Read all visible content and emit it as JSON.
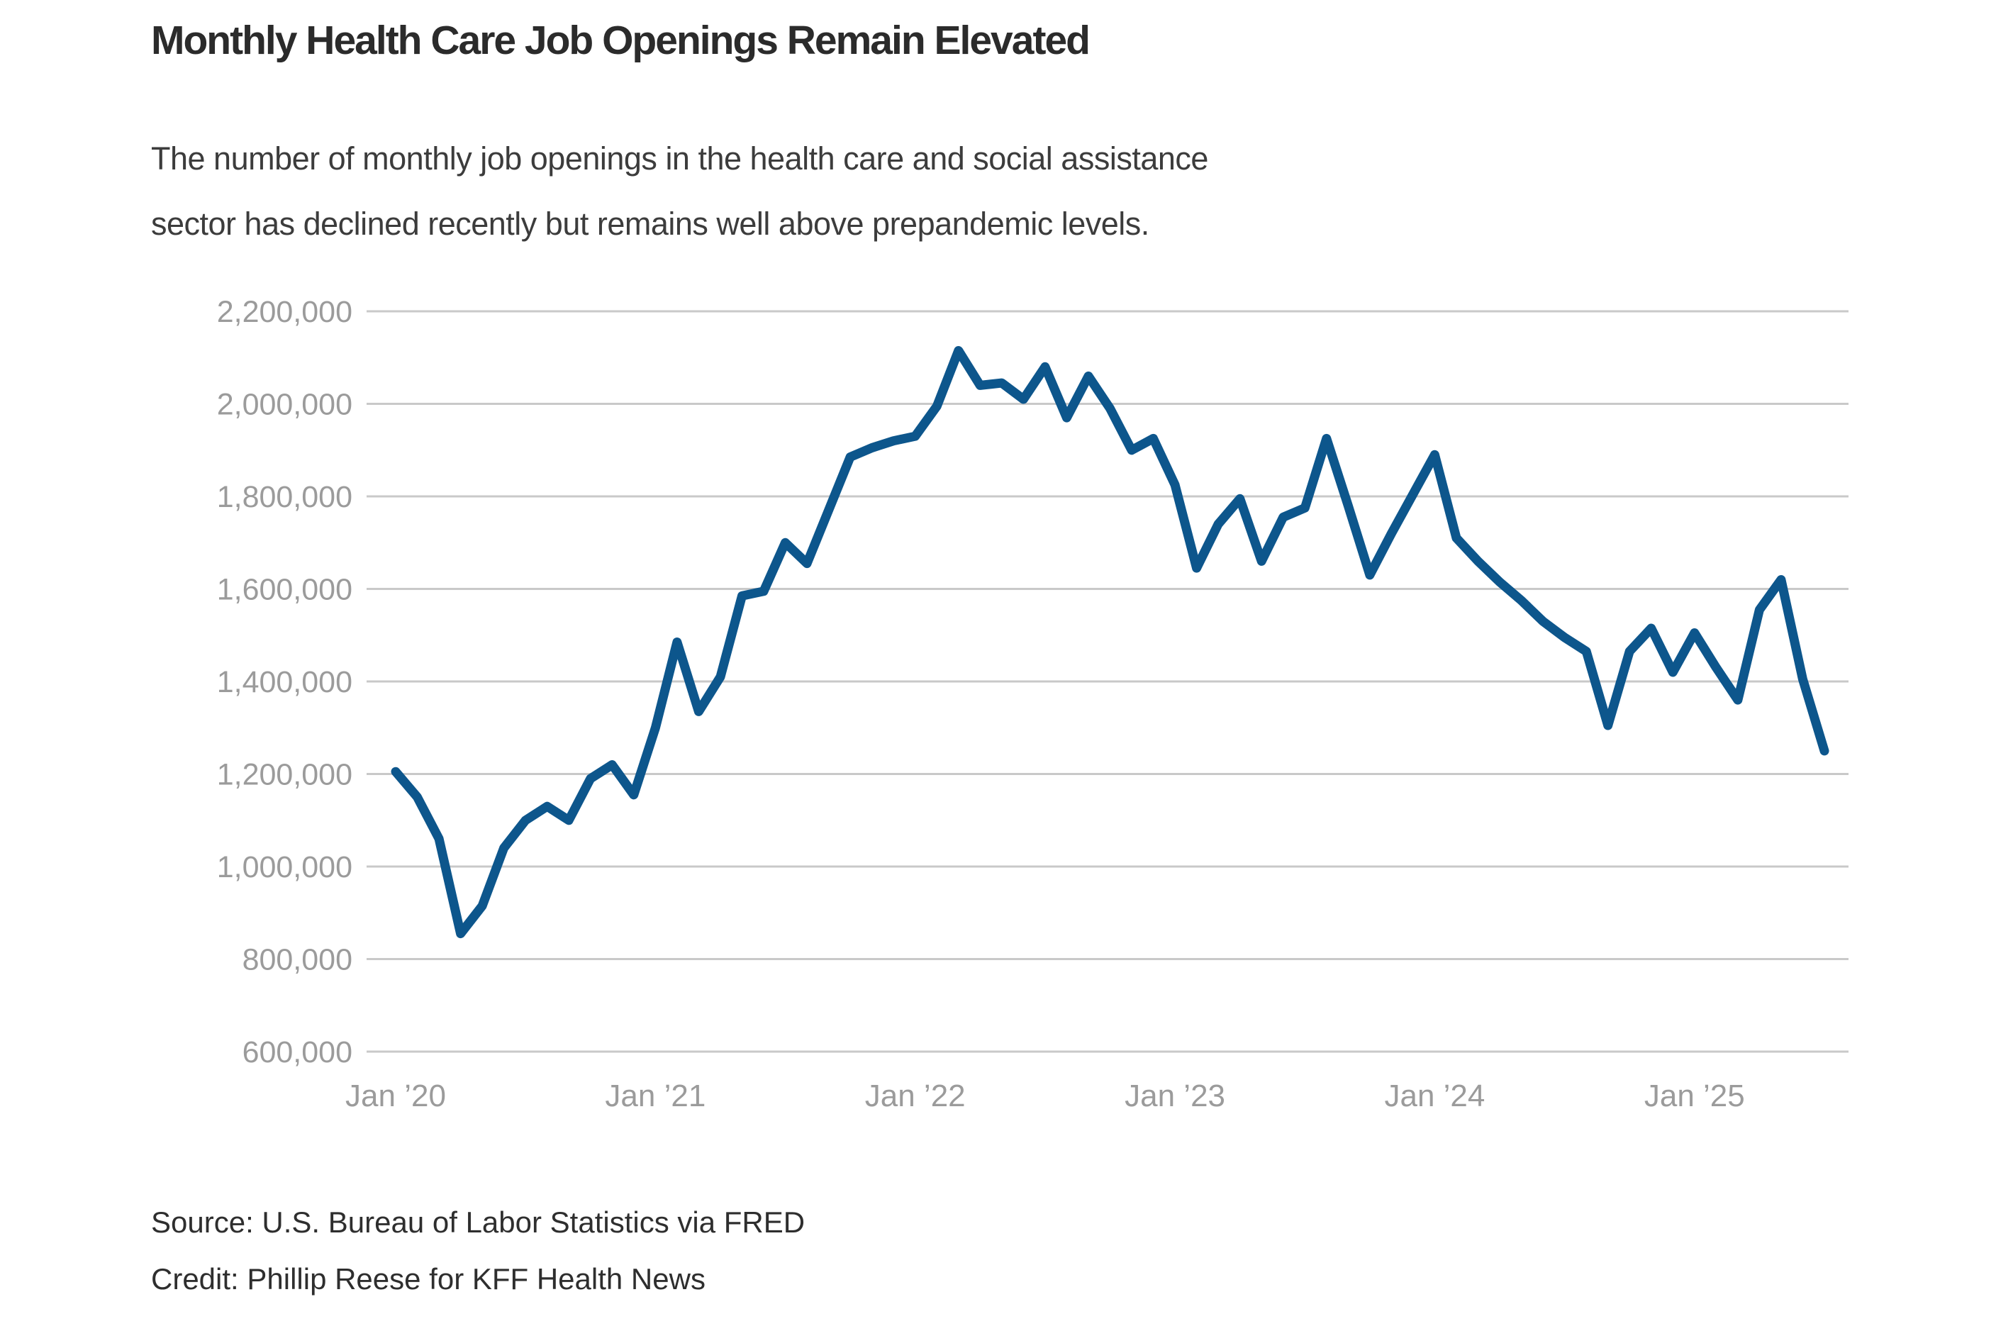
{
  "header": {},
  "footer": {
    "source": "Source: U.S. Bureau of Labor Statistics via FRED",
    "credit": "Credit: Phillip Reese for KFF Health News"
  },
  "colors": {
    "line": "#0d568c",
    "grid": "#c9c9c9",
    "axis_text": "#9b9b9b",
    "title_text": "#2b2b2b",
    "subtitle_text": "#3c3c3c",
    "footer_text": "#2e2e2e",
    "background": "#ffffff"
  },
  "chart_data": {
    "type": "line",
    "title": "Monthly Health Care Job Openings Remain Elevated",
    "subtitle_line1": "The number of monthly job openings in the health care and social assistance",
    "subtitle_line2": "sector has declined recently but remains well above prepandemic levels.",
    "xlabel": "",
    "ylabel": "",
    "grid": true,
    "legend_position": "none",
    "ylim": [
      600000,
      2200000
    ],
    "y_tick_step": 200000,
    "y_tick_labels": [
      "600,000",
      "800,000",
      "1,000,000",
      "1,200,000",
      "1,400,000",
      "1,600,000",
      "1,800,000",
      "2,000,000",
      "2,200,000"
    ],
    "x_tick_labels": [
      "Jan ’20",
      "Jan ’21",
      "Jan ’22",
      "Jan ’23",
      "Jan ’24",
      "Jan ’25"
    ],
    "x_tick_month_indices": [
      0,
      12,
      24,
      36,
      48,
      60
    ],
    "months": [
      "2020-01",
      "2020-02",
      "2020-03",
      "2020-04",
      "2020-05",
      "2020-06",
      "2020-07",
      "2020-08",
      "2020-09",
      "2020-10",
      "2020-11",
      "2020-12",
      "2021-01",
      "2021-02",
      "2021-03",
      "2021-04",
      "2021-05",
      "2021-06",
      "2021-07",
      "2021-08",
      "2021-09",
      "2021-10",
      "2021-11",
      "2021-12",
      "2022-01",
      "2022-02",
      "2022-03",
      "2022-04",
      "2022-05",
      "2022-06",
      "2022-07",
      "2022-08",
      "2022-09",
      "2022-10",
      "2022-11",
      "2022-12",
      "2023-01",
      "2023-02",
      "2023-03",
      "2023-04",
      "2023-05",
      "2023-06",
      "2023-07",
      "2023-08",
      "2023-09",
      "2023-10",
      "2023-11",
      "2023-12",
      "2024-01",
      "2024-02",
      "2024-03",
      "2024-04",
      "2024-05",
      "2024-06",
      "2024-07",
      "2024-08",
      "2024-09",
      "2024-10",
      "2024-11",
      "2024-12",
      "2025-01",
      "2025-02",
      "2025-03",
      "2025-04",
      "2025-05",
      "2025-06",
      "2025-07"
    ],
    "values": [
      1205000,
      1150000,
      1060000,
      855000,
      915000,
      1040000,
      1100000,
      1130000,
      1100000,
      1190000,
      1220000,
      1155000,
      1300000,
      1485000,
      1335000,
      1410000,
      1585000,
      1595000,
      1700000,
      1655000,
      1770000,
      1885000,
      1905000,
      1920000,
      1930000,
      1995000,
      2115000,
      2040000,
      2045000,
      2010000,
      2080000,
      1970000,
      2060000,
      1990000,
      1900000,
      1925000,
      1825000,
      1645000,
      1740000,
      1795000,
      1660000,
      1755000,
      1775000,
      1925000,
      1780000,
      1630000,
      1720000,
      1805000,
      1890000,
      1710000,
      1660000,
      1615000,
      1575000,
      1530000,
      1495000,
      1465000,
      1305000,
      1465000,
      1515000,
      1420000,
      1505000,
      1430000,
      1360000,
      1555000,
      1620000,
      1405000,
      1250000
    ]
  }
}
